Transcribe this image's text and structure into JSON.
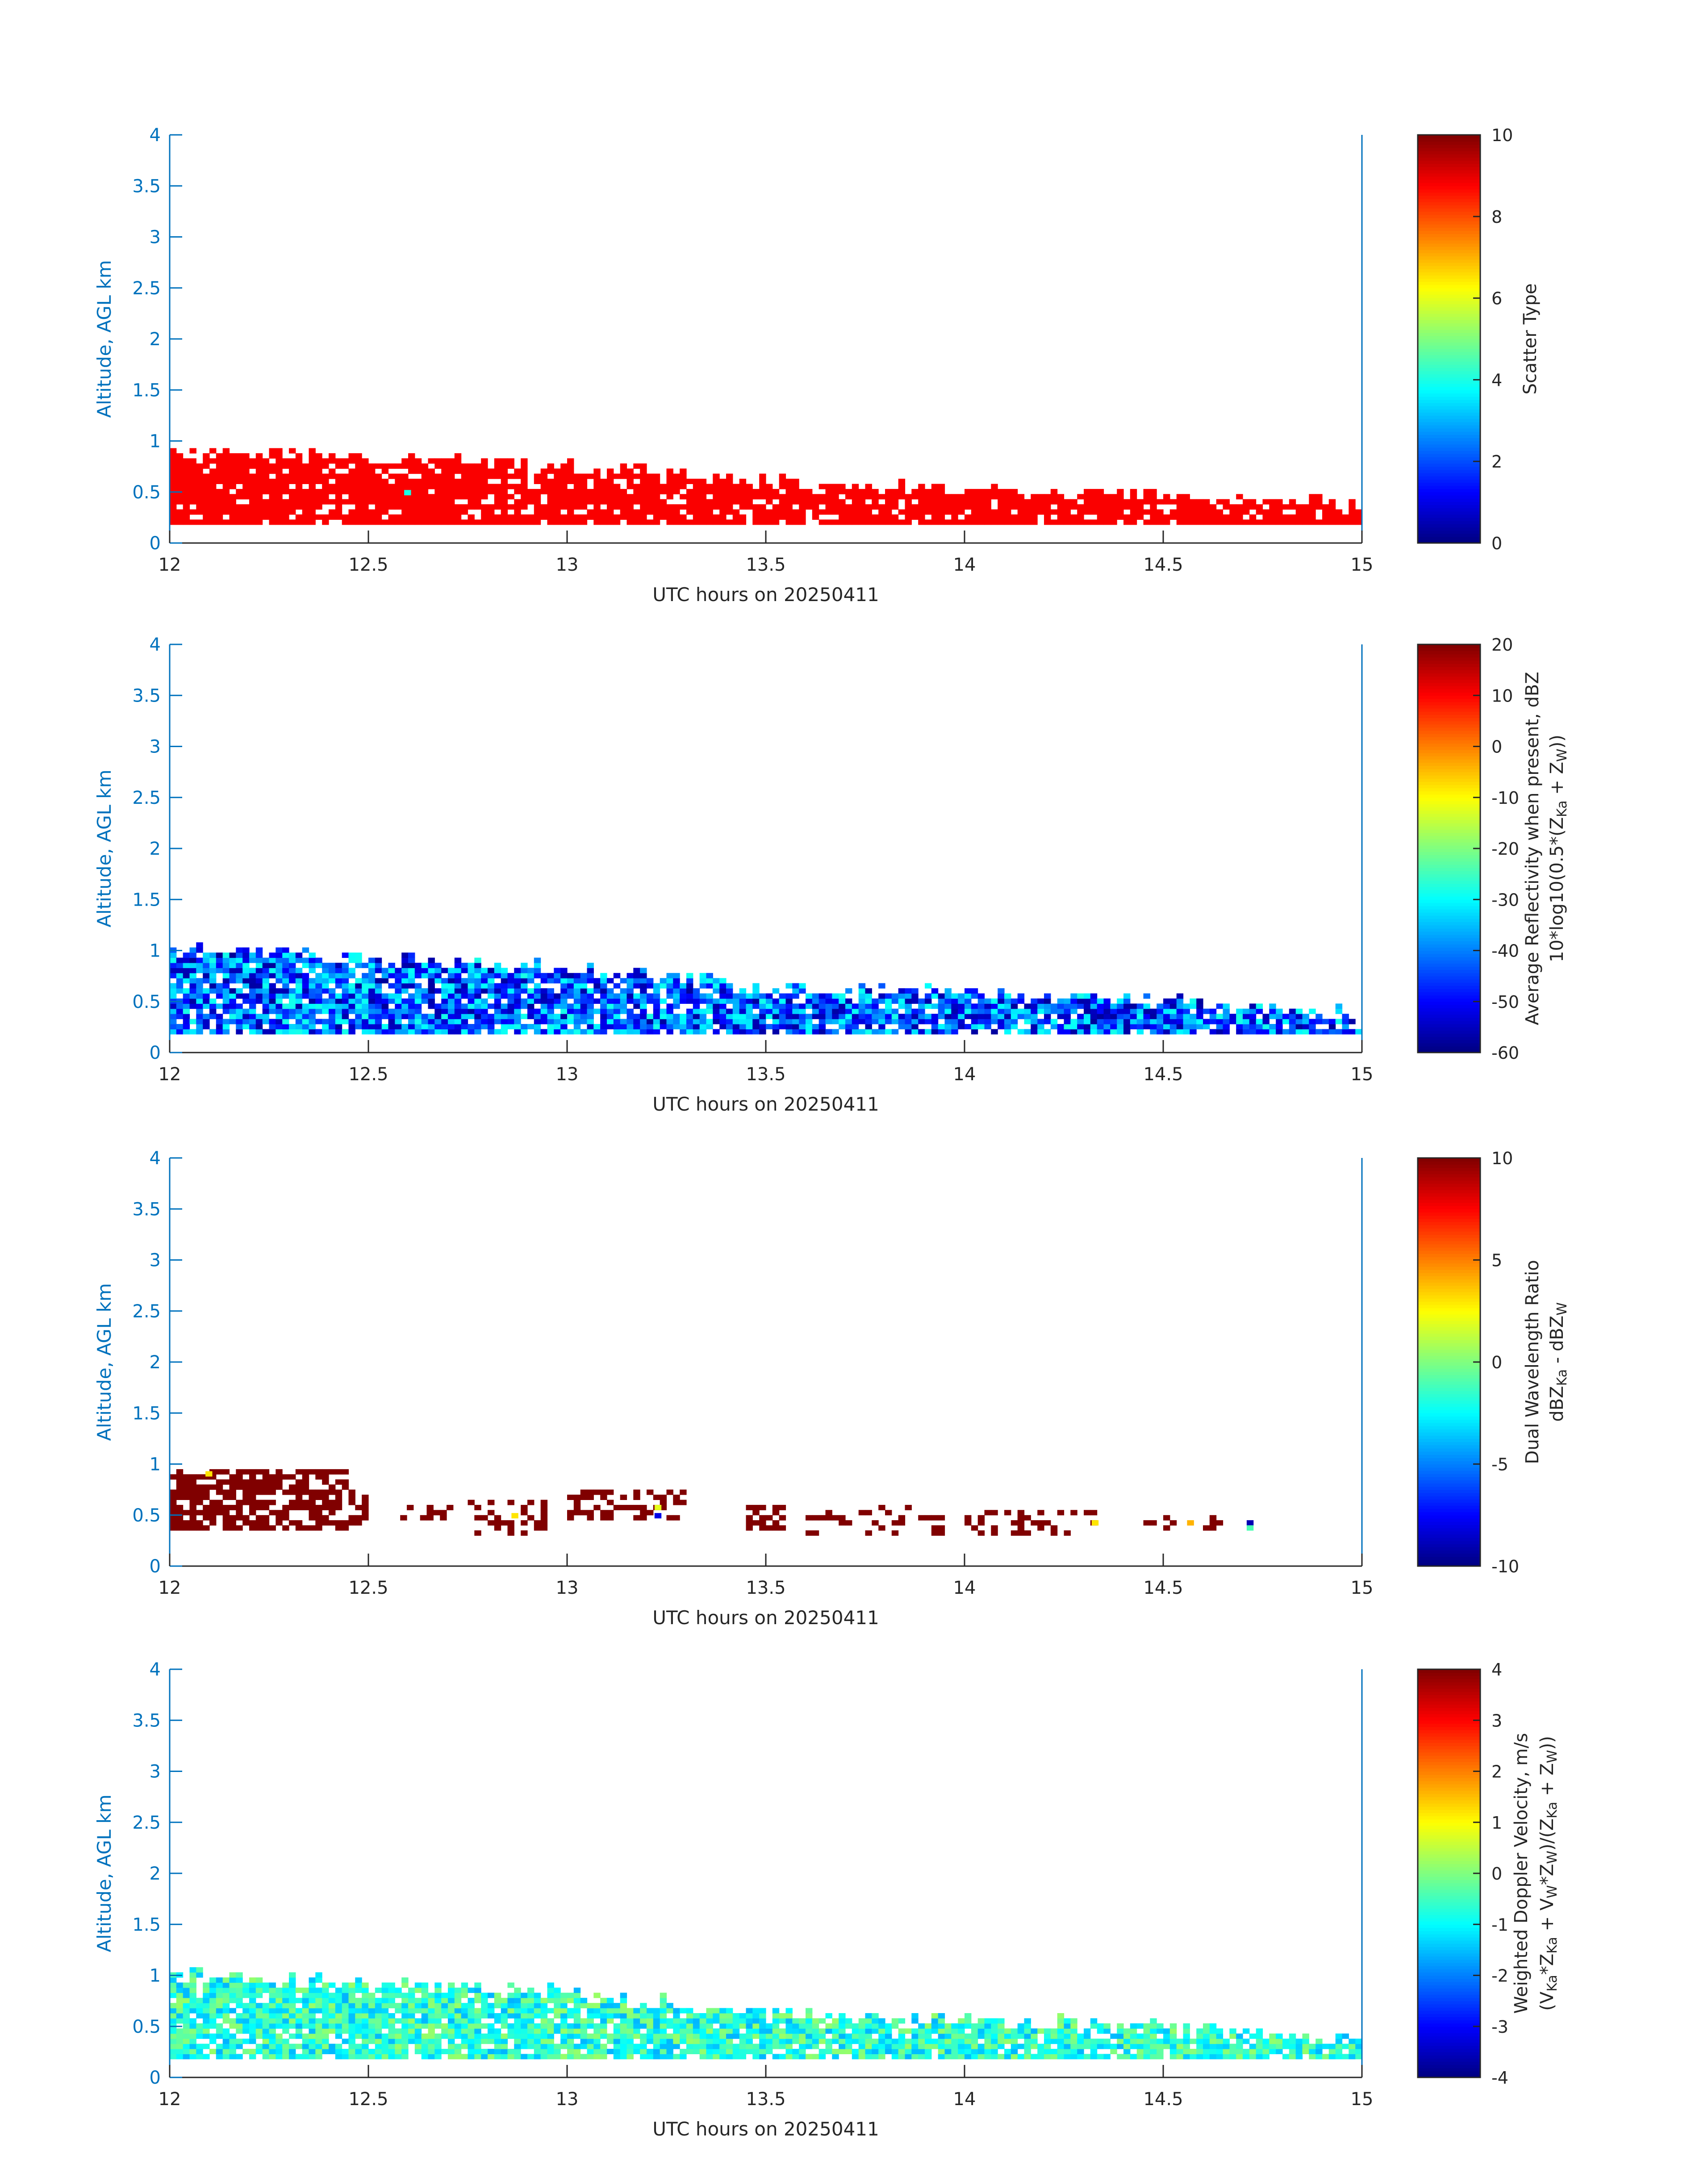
{
  "figure": {
    "colors": {
      "axis": "#0072BD",
      "text": "#262626",
      "colorbar_frame": "#262626"
    }
  },
  "chart_data": [
    {
      "type": "heatmap",
      "title": "",
      "xlabel": "UTC hours on 20250411",
      "ylabel": "Altitude, AGL km",
      "xlim": [
        12,
        15
      ],
      "ylim": [
        0,
        4
      ],
      "x_ticks": [
        "12",
        "12.5",
        "13",
        "13.5",
        "14",
        "14.5",
        "15"
      ],
      "y_ticks": [
        "0",
        "0.5",
        "1",
        "1.5",
        "2",
        "2.5",
        "3",
        "3.5",
        "4"
      ],
      "grid": false,
      "colormap": "jet",
      "colorbar": {
        "label_lines": [
          "Scatter Type"
        ],
        "clim": [
          0,
          10
        ],
        "ticks": [
          "0",
          "2",
          "4",
          "6",
          "8",
          "10"
        ]
      },
      "description_of_field": "mostly value ~8.8 (orange-red) from 0.2 to ~0.8 km altitude across 12-15 UTC, top descending to ~0.35 km by 15 UTC; isolated point near 12.59 h at 0.5 km value ~4",
      "layer": {
        "top_km": [
          [
            12.0,
            0.88
          ],
          [
            12.5,
            0.82
          ],
          [
            13.0,
            0.72
          ],
          [
            13.5,
            0.58
          ],
          [
            14.0,
            0.5
          ],
          [
            14.5,
            0.45
          ],
          [
            15.0,
            0.35
          ]
        ],
        "bottom_km": 0.18
      },
      "value_range_in_layer": [
        8.6,
        9.0
      ]
    },
    {
      "type": "heatmap",
      "title": "",
      "xlabel": "UTC hours on 20250411",
      "ylabel": "Altitude, AGL km",
      "xlim": [
        12,
        15
      ],
      "ylim": [
        0,
        4
      ],
      "x_ticks": [
        "12",
        "12.5",
        "13",
        "13.5",
        "14",
        "14.5",
        "15"
      ],
      "y_ticks": [
        "0",
        "0.5",
        "1",
        "1.5",
        "2",
        "2.5",
        "3",
        "3.5",
        "4"
      ],
      "grid": false,
      "colormap": "jet",
      "colorbar": {
        "label_lines": [
          "Average Reflectivity when present, dBZ",
          "10*log10(0.5*(Z",
          "Ka",
          " + Z",
          "W",
          "))"
        ],
        "clim": [
          -60,
          20
        ],
        "ticks": [
          "-60",
          "-50",
          "-40",
          "-30",
          "-20",
          "-10",
          "0",
          "10",
          "20"
        ]
      },
      "layer": {
        "top_km": [
          [
            12.0,
            1.0
          ],
          [
            12.5,
            0.9
          ],
          [
            13.0,
            0.8
          ],
          [
            13.5,
            0.62
          ],
          [
            14.0,
            0.55
          ],
          [
            14.5,
            0.48
          ],
          [
            15.0,
            0.35
          ]
        ],
        "bottom_km": 0.18
      },
      "value_range_in_layer": [
        -58,
        -28
      ]
    },
    {
      "type": "heatmap",
      "title": "",
      "xlabel": "UTC hours on 20250411",
      "ylabel": "Altitude, AGL km",
      "xlim": [
        12,
        15
      ],
      "ylim": [
        0,
        4
      ],
      "x_ticks": [
        "12",
        "12.5",
        "13",
        "13.5",
        "14",
        "14.5",
        "15"
      ],
      "y_ticks": [
        "0",
        "0.5",
        "1",
        "1.5",
        "2",
        "2.5",
        "3",
        "3.5",
        "4"
      ],
      "grid": false,
      "colormap": "jet",
      "colorbar": {
        "label_lines": [
          "Dual Wavelength Ratio",
          "dBZ",
          "Ka",
          " - dBZ",
          "W"
        ],
        "clim": [
          -10,
          10
        ],
        "ticks": [
          "-10",
          "-5",
          "0",
          "5",
          "10"
        ]
      },
      "clusters": [
        {
          "x": [
            12.0,
            12.45
          ],
          "y": [
            0.35,
            0.95
          ],
          "value": 10,
          "density": 0.7
        },
        {
          "x": [
            12.45,
            12.5
          ],
          "y": [
            0.4,
            0.75
          ],
          "value": 10,
          "density": 0.5
        },
        {
          "x": [
            12.58,
            12.7
          ],
          "y": [
            0.45,
            0.6
          ],
          "value": 10,
          "density": 0.3
        },
        {
          "x": [
            12.75,
            12.95
          ],
          "y": [
            0.3,
            0.65
          ],
          "value": 10,
          "density": 0.3
        },
        {
          "x": [
            13.0,
            13.3
          ],
          "y": [
            0.45,
            0.72
          ],
          "value": 10,
          "density": 0.35
        },
        {
          "x": [
            13.45,
            13.55
          ],
          "y": [
            0.35,
            0.6
          ],
          "value": 10,
          "density": 0.6
        },
        {
          "x": [
            13.6,
            13.95
          ],
          "y": [
            0.3,
            0.55
          ],
          "value": 10,
          "density": 0.3
        },
        {
          "x": [
            14.0,
            14.35
          ],
          "y": [
            0.3,
            0.5
          ],
          "value": 10,
          "density": 0.3
        },
        {
          "x": [
            14.45,
            14.72
          ],
          "y": [
            0.35,
            0.48
          ],
          "value": 10,
          "density": 0.2
        }
      ],
      "points": [
        {
          "x": 12.09,
          "y": 0.88,
          "value": 3
        },
        {
          "x": 13.22,
          "y": 0.55,
          "value": 2
        },
        {
          "x": 13.22,
          "y": 0.47,
          "value": -8
        },
        {
          "x": 12.86,
          "y": 0.47,
          "value": 3
        },
        {
          "x": 14.32,
          "y": 0.4,
          "value": 3
        },
        {
          "x": 14.56,
          "y": 0.4,
          "value": 4
        },
        {
          "x": 14.71,
          "y": 0.4,
          "value": -9
        },
        {
          "x": 14.71,
          "y": 0.35,
          "value": -1
        }
      ]
    },
    {
      "type": "heatmap",
      "title": "",
      "xlabel": "UTC hours on 20250411",
      "ylabel": "Altitude, AGL km",
      "xlim": [
        12,
        15
      ],
      "ylim": [
        0,
        4
      ],
      "x_ticks": [
        "12",
        "12.5",
        "13",
        "13.5",
        "14",
        "14.5",
        "15"
      ],
      "y_ticks": [
        "0",
        "0.5",
        "1",
        "1.5",
        "2",
        "2.5",
        "3",
        "3.5",
        "4"
      ],
      "grid": false,
      "colormap": "jet",
      "colorbar": {
        "label_lines": [
          "Weighted Doppler Velocity, m/s",
          "(V",
          "Ka",
          "*Z",
          "Ka",
          " + V",
          "W",
          "*Z",
          "W",
          ")/(Z",
          "Ka",
          " + Z",
          "W",
          "))"
        ],
        "clim": [
          -4,
          4
        ],
        "ticks": [
          "-4",
          "-3",
          "-2",
          "-1",
          "0",
          "1",
          "2",
          "3",
          "4"
        ]
      },
      "layer": {
        "top_km": [
          [
            12.0,
            1.0
          ],
          [
            12.5,
            0.9
          ],
          [
            13.0,
            0.8
          ],
          [
            13.5,
            0.62
          ],
          [
            14.0,
            0.55
          ],
          [
            14.5,
            0.48
          ],
          [
            15.0,
            0.35
          ]
        ],
        "bottom_km": 0.18
      },
      "value_range_in_layer": [
        -1.6,
        0.2
      ]
    }
  ]
}
